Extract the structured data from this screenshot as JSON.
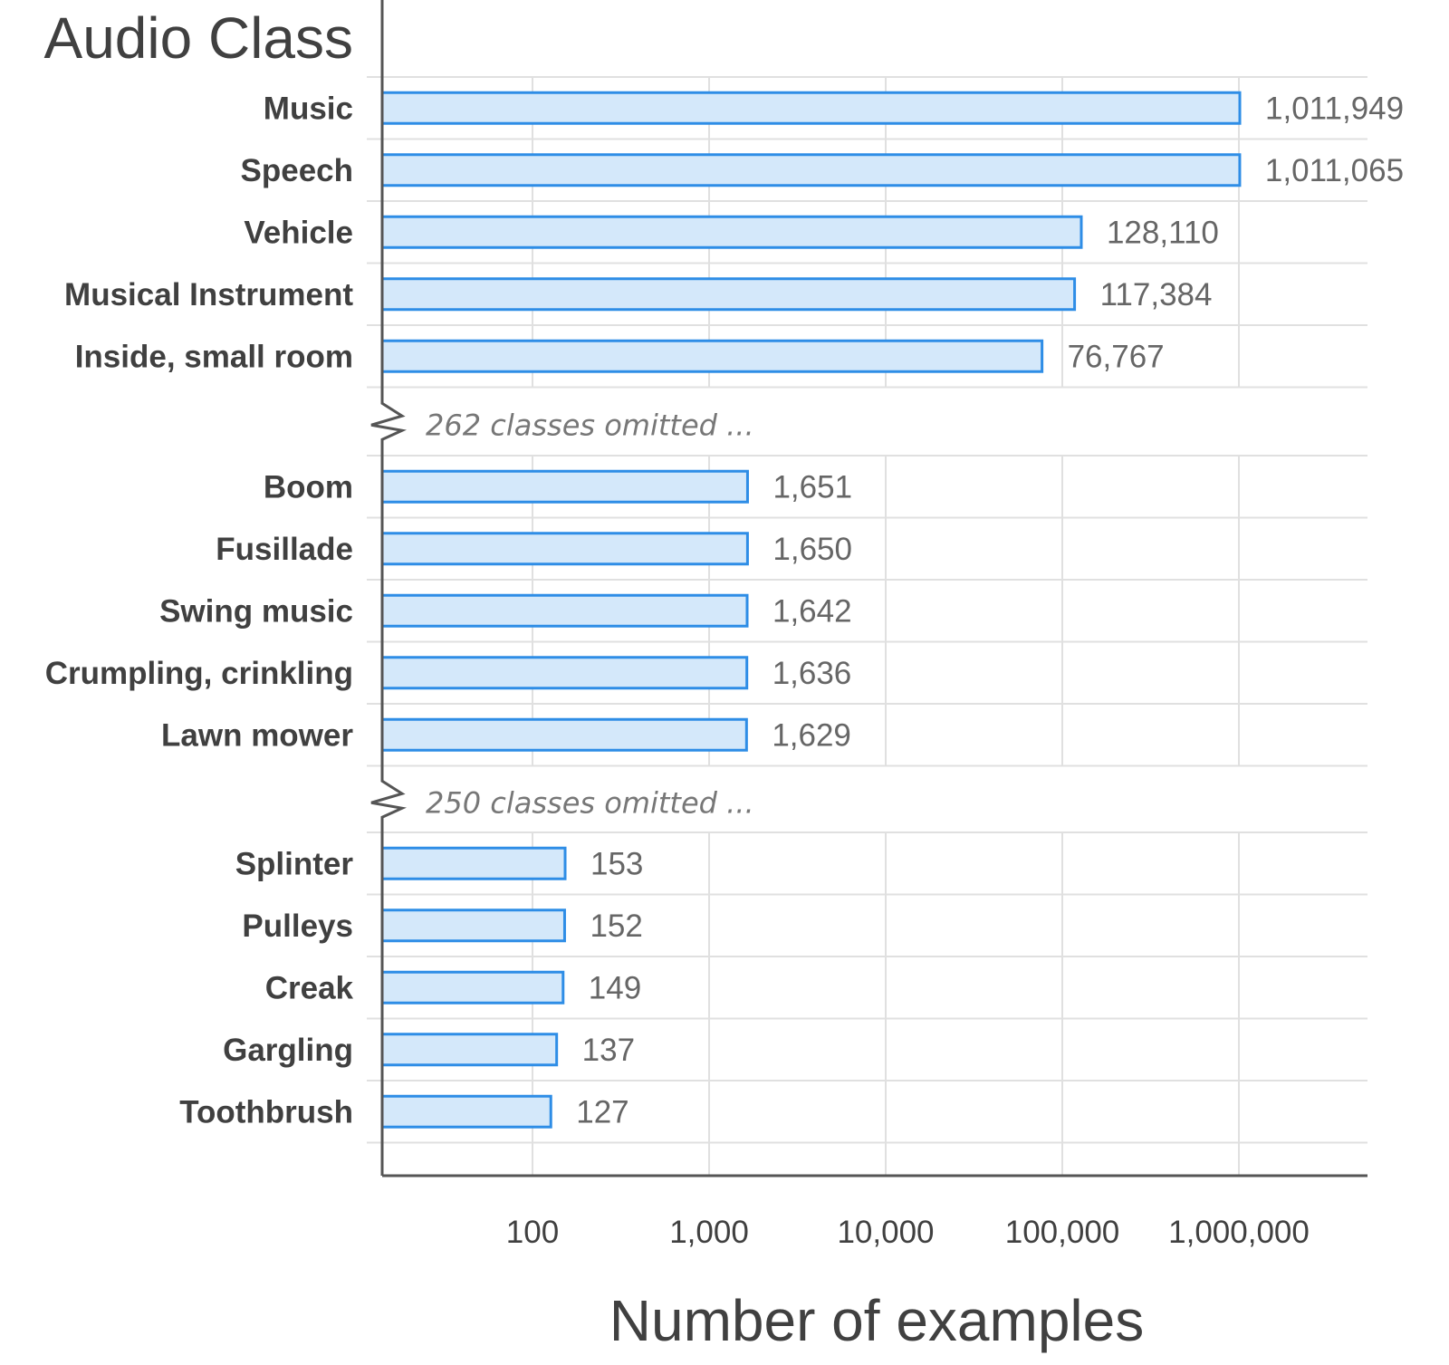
{
  "chart_data": {
    "type": "bar",
    "orientation": "horizontal",
    "title": "",
    "ylabel": "Audio Class",
    "xlabel": "Number of examples",
    "x_scale": "log",
    "xlim": [
      15,
      4000000
    ],
    "x_ticks": [
      100,
      1000,
      10000,
      100000,
      1000000
    ],
    "x_tick_labels": [
      "100",
      "1,000",
      "10,000",
      "100,000",
      "1,000,000"
    ],
    "grid": true,
    "groups": [
      {
        "bars": [
          {
            "category": "Music",
            "value": 1011949,
            "label": "1,011,949"
          },
          {
            "category": "Speech",
            "value": 1011065,
            "label": "1,011,065"
          },
          {
            "category": "Vehicle",
            "value": 128110,
            "label": "128,110"
          },
          {
            "category": "Musical Instrument",
            "value": 117384,
            "label": "117,384"
          },
          {
            "category": "Inside, small room",
            "value": 76767,
            "label": "76,767"
          }
        ],
        "omitted_after": "262 classes omitted ..."
      },
      {
        "bars": [
          {
            "category": "Boom",
            "value": 1651,
            "label": "1,651"
          },
          {
            "category": "Fusillade",
            "value": 1650,
            "label": "1,650"
          },
          {
            "category": "Swing music",
            "value": 1642,
            "label": "1,642"
          },
          {
            "category": "Crumpling, crinkling",
            "value": 1636,
            "label": "1,636"
          },
          {
            "category": "Lawn mower",
            "value": 1629,
            "label": "1,629"
          }
        ],
        "omitted_after": "250 classes omitted ..."
      },
      {
        "bars": [
          {
            "category": "Splinter",
            "value": 153,
            "label": "153"
          },
          {
            "category": "Pulleys",
            "value": 152,
            "label": "152"
          },
          {
            "category": "Creak",
            "value": 149,
            "label": "149"
          },
          {
            "category": "Gargling",
            "value": 137,
            "label": "137"
          },
          {
            "category": "Toothbrush",
            "value": 127,
            "label": "127"
          }
        ],
        "omitted_after": null
      }
    ],
    "colors": {
      "bar_fill": "#d4e8fa",
      "bar_stroke": "#2e8de6",
      "text": "#404040",
      "value_text": "#666666"
    }
  }
}
